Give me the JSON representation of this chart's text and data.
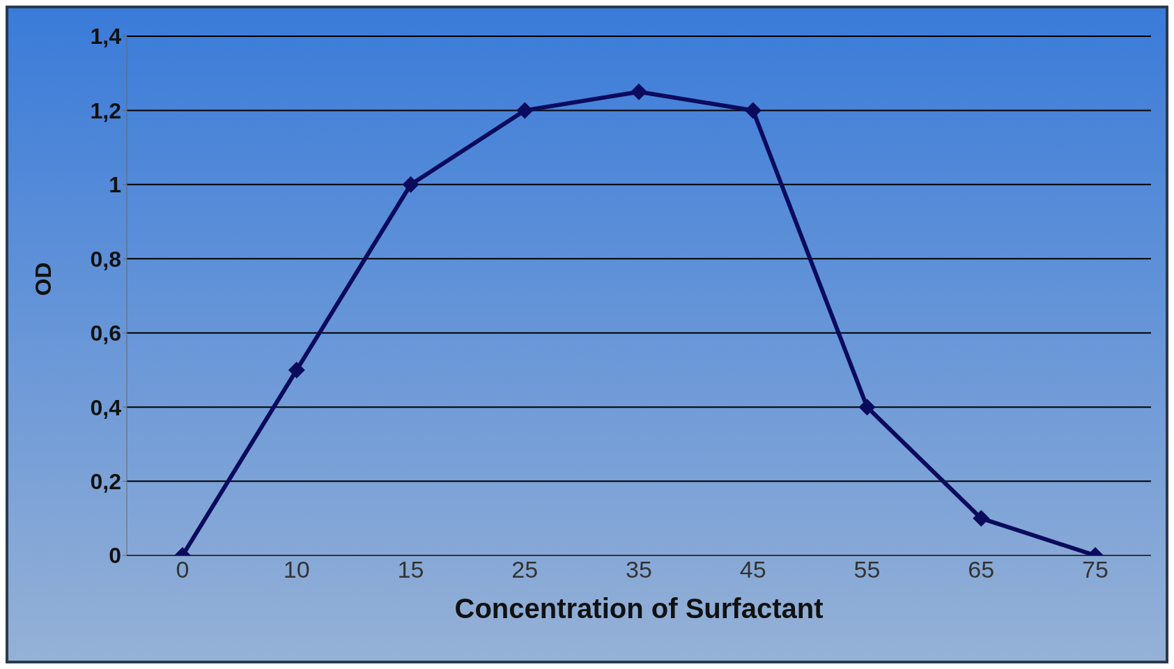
{
  "chart_data": {
    "type": "line",
    "xlabel": "Concentration of Surfactant",
    "ylabel": "OD",
    "categories": [
      "0",
      "10",
      "15",
      "25",
      "35",
      "45",
      "55",
      "65",
      "75"
    ],
    "series": [
      {
        "color": "#0b0b5e",
        "values": [
          0,
          0.5,
          1,
          1.2,
          1.25,
          1.2,
          0.4,
          0.1,
          0
        ]
      }
    ],
    "ylim": [
      0,
      1.4
    ],
    "yticks": [
      0,
      {
        "value": 0.2,
        "label": "0,2"
      },
      {
        "value": 0.4,
        "label": "0,4"
      },
      {
        "value": 0.6,
        "label": "0,6"
      },
      {
        "value": 0.8,
        "label": "0,8"
      },
      1,
      {
        "value": 1.2,
        "label": "1,2"
      },
      {
        "value": 1.4,
        "label": "1,4"
      }
    ],
    "grid": "y",
    "legend": false,
    "marker": "diamond",
    "line_style": "solid"
  }
}
